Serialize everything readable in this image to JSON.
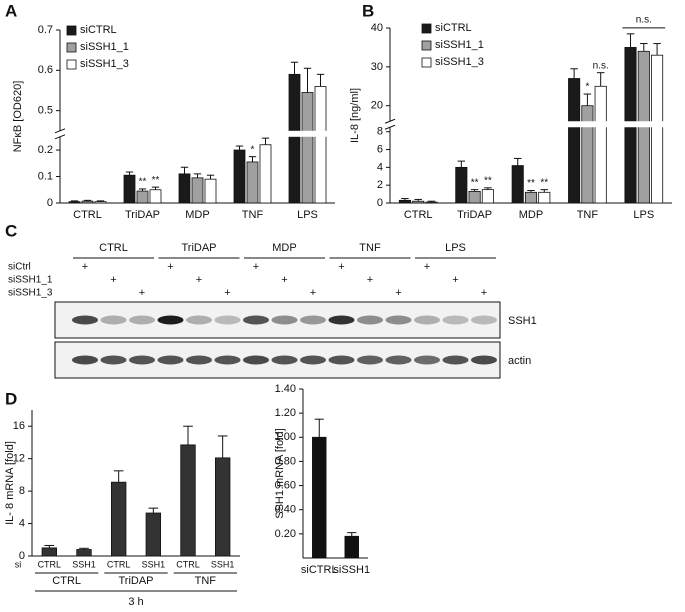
{
  "chart_data": [
    {
      "panel": "A",
      "type": "bar",
      "y_label": "NFκB [OD620]",
      "categories": [
        "CTRL",
        "TriDAP",
        "MDP",
        "TNF",
        "LPS"
      ],
      "series": [
        {
          "name": "siCTRL",
          "color": "#1a1a1a",
          "values": [
            0.005,
            0.105,
            0.11,
            0.2,
            0.59
          ],
          "errors": [
            0.003,
            0.012,
            0.025,
            0.015,
            0.03
          ],
          "significance": [
            null,
            null,
            null,
            null,
            null
          ]
        },
        {
          "name": "siSSH1_1",
          "color": "#a0a0a0",
          "values": [
            0.007,
            0.045,
            0.095,
            0.155,
            0.545
          ],
          "errors": [
            0.003,
            0.008,
            0.015,
            0.02,
            0.06
          ],
          "significance": [
            null,
            "**",
            null,
            "*",
            null
          ]
        },
        {
          "name": "siSSH1_3",
          "color": "#ffffff",
          "values": [
            0.005,
            0.05,
            0.09,
            0.22,
            0.56
          ],
          "errors": [
            0.003,
            0.01,
            0.015,
            0.025,
            0.03
          ],
          "significance": [
            null,
            "**",
            null,
            null,
            null
          ]
        }
      ],
      "ylim": [
        0,
        0.7
      ],
      "y_break": [
        0.25,
        0.45
      ],
      "yticks": [
        0,
        0.1,
        0.2,
        0.5,
        0.6,
        0.7
      ],
      "legend": "upper left"
    },
    {
      "panel": "B",
      "type": "bar",
      "y_label": "IL-8 [ng/ml]",
      "categories": [
        "CTRL",
        "TriDAP",
        "MDP",
        "TNF",
        "LPS"
      ],
      "series": [
        {
          "name": "siCTRL",
          "color": "#1a1a1a",
          "values": [
            0.3,
            4.0,
            4.2,
            27,
            35
          ],
          "errors": [
            0.2,
            0.7,
            0.8,
            2.5,
            3.5
          ],
          "significance": [
            null,
            null,
            null,
            null,
            null
          ]
        },
        {
          "name": "siSSH1_1",
          "color": "#a0a0a0",
          "values": [
            0.2,
            1.3,
            1.2,
            20,
            34
          ],
          "errors": [
            0.2,
            0.2,
            0.2,
            3,
            2
          ],
          "significance": [
            null,
            "**",
            "**",
            "*",
            null
          ]
        },
        {
          "name": "siSSH1_3",
          "color": "#ffffff",
          "values": [
            0.1,
            1.5,
            1.2,
            25,
            33
          ],
          "errors": [
            0.1,
            0.2,
            0.3,
            3.5,
            3
          ],
          "significance": [
            null,
            "**",
            "**",
            "n.s.",
            null
          ]
        }
      ],
      "group_significance": [
        null,
        null,
        null,
        null,
        "n.s."
      ],
      "ylim": [
        0,
        40
      ],
      "y_break": [
        8.5,
        16
      ],
      "yticks": [
        0,
        2,
        4,
        6,
        8,
        20,
        30,
        40
      ],
      "legend": "upper left"
    },
    {
      "panel": "D",
      "type": "bar",
      "y_label": "IL- 8 mRNA  [fold]",
      "categories": [
        "CTRL",
        "SSH1",
        "CTRL",
        "SSH1",
        "CTRL",
        "SSH1"
      ],
      "category_prefix": "si",
      "groups": [
        "CTRL",
        "TriDAP",
        "TNF"
      ],
      "time_label": "3 h",
      "values": [
        1.0,
        0.8,
        9.1,
        5.3,
        13.7,
        12.1
      ],
      "errors": [
        0.3,
        0.15,
        1.4,
        0.6,
        2.3,
        2.7
      ],
      "color": "#333333",
      "ylim": [
        0,
        18
      ],
      "yticks": [
        0,
        4,
        8,
        12,
        16
      ]
    },
    {
      "type": "bar",
      "y_label": "SSH1 mRNA [fold]",
      "categories": [
        "siCTRL",
        "siSSH1"
      ],
      "values": [
        1.0,
        0.18
      ],
      "errors": [
        0.15,
        0.03
      ],
      "color": "#111111",
      "ylim": [
        0,
        1.4
      ],
      "yticks": [
        {
          "value": 0.2,
          "label": "0.20"
        },
        {
          "value": 0.4,
          "label": "0.40"
        },
        {
          "value": 0.6,
          "label": "0.60"
        },
        {
          "value": 0.8,
          "label": "0.80"
        },
        {
          "value": 1.0,
          "label": "1.00"
        },
        {
          "value": 1.2,
          "label": "1.20"
        },
        {
          "value": 1.4,
          "label": "1.40"
        }
      ]
    }
  ],
  "blot": {
    "panel": "C",
    "groups": [
      "CTRL",
      "TriDAP",
      "MDP",
      "TNF",
      "LPS"
    ],
    "rows": [
      {
        "label": "siCtrl",
        "marks": [
          "+",
          null,
          null,
          "+",
          null,
          null,
          "+",
          null,
          null,
          "+",
          null,
          null,
          "+",
          null,
          null
        ]
      },
      {
        "label": "siSSH1_1",
        "marks": [
          null,
          "+",
          null,
          null,
          "+",
          null,
          null,
          "+",
          null,
          null,
          "+",
          null,
          null,
          "+",
          null
        ]
      },
      {
        "label": "siSSH1_3",
        "marks": [
          null,
          null,
          "+",
          null,
          null,
          "+",
          null,
          null,
          "+",
          null,
          null,
          "+",
          null,
          null,
          "+"
        ]
      }
    ],
    "bands": [
      "SSH1",
      "actin"
    ]
  }
}
